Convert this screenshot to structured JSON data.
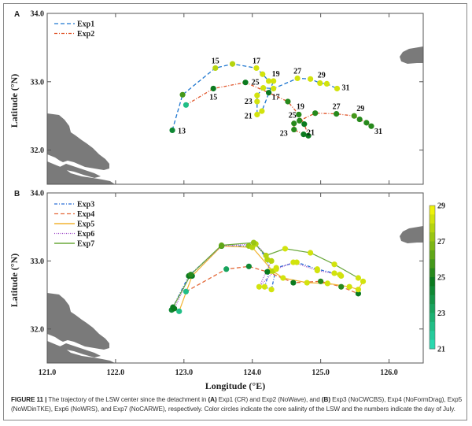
{
  "figure": {
    "caption_label": "FIGURE 11 |",
    "caption_text_1": " The trajectory of the LSW center since the detachment in ",
    "caption_a": "(A)",
    "caption_text_2": " Exp1 (CR) and Exp2 (NoWave), and ",
    "caption_b": "(B)",
    "caption_text_3": " Exp3 (NoCWCBS), Exp4 (NoFormDrag), Exp5 (NoWDinTKE), Exp6 (NoWRS), and Exp7 (NoCARWE), respectively. Color circles indicate the core salinity of the LSW and the numbers indicate the day of July."
  },
  "colors": {
    "Exp1": "#1f77d0",
    "Exp2": "#e0552a",
    "Exp3": "#2a6fd6",
    "Exp4": "#e46a3a",
    "Exp5": "#f2b431",
    "Exp6": "#a04cc8",
    "Exp7": "#6aa83a",
    "land": "#7a7a7a",
    "colorbar_low": "#2de6c4",
    "colorbar_mid": "#0b7a1f",
    "colorbar_high": "#eef20a"
  },
  "chart_data": [
    {
      "panel": "A",
      "type": "line",
      "title": "",
      "xlabel": "Longitude (°E)",
      "ylabel": "Latitude (°N)",
      "xlim": [
        121.0,
        126.5
      ],
      "ylim": [
        31.5,
        34.0
      ],
      "xticks": [
        "121.0",
        "122.0",
        "123.0",
        "124.0",
        "125.0",
        "126.0"
      ],
      "yticks": [
        "32.0",
        "33.0",
        "34.0"
      ],
      "legend_position": "top-left",
      "series": [
        {
          "name": "Exp1",
          "style": "dashed",
          "points": [
            {
              "lon": 122.83,
              "lat": 32.29,
              "salinity": 24.5,
              "day": "13"
            },
            {
              "lon": 122.98,
              "lat": 32.81,
              "salinity": 25.8
            },
            {
              "lon": 123.46,
              "lat": 33.2,
              "salinity": 28.0,
              "day": "15"
            },
            {
              "lon": 123.71,
              "lat": 33.26,
              "salinity": 28.2
            },
            {
              "lon": 124.06,
              "lat": 33.2,
              "salinity": 28.3,
              "day": "17"
            },
            {
              "lon": 124.15,
              "lat": 33.11,
              "salinity": 28.4
            },
            {
              "lon": 124.24,
              "lat": 33.01,
              "salinity": 28.4,
              "day": "19"
            },
            {
              "lon": 124.31,
              "lat": 33.01,
              "salinity": 28.5
            },
            {
              "lon": 124.14,
              "lat": 32.57,
              "salinity": 28.5
            },
            {
              "lon": 124.07,
              "lat": 32.52,
              "salinity": 28.6,
              "day": "21"
            },
            {
              "lon": 124.07,
              "lat": 32.71,
              "salinity": 28.5,
              "day": "23"
            },
            {
              "lon": 124.07,
              "lat": 32.8,
              "salinity": 28.5
            },
            {
              "lon": 124.16,
              "lat": 32.91,
              "salinity": 28.4,
              "day": "25"
            },
            {
              "lon": 124.31,
              "lat": 32.9,
              "salinity": 28.5
            },
            {
              "lon": 124.66,
              "lat": 33.05,
              "salinity": 28.6,
              "day": "27"
            },
            {
              "lon": 124.85,
              "lat": 33.04,
              "salinity": 28.6
            },
            {
              "lon": 124.99,
              "lat": 32.98,
              "salinity": 28.6,
              "day": "29"
            },
            {
              "lon": 125.09,
              "lat": 32.97,
              "salinity": 28.6
            },
            {
              "lon": 125.24,
              "lat": 32.9,
              "salinity": 28.7,
              "day": "31"
            }
          ]
        },
        {
          "name": "Exp2",
          "style": "dash-dot",
          "points": [
            {
              "lon": 123.03,
              "lat": 32.66,
              "salinity": 22.5
            },
            {
              "lon": 123.43,
              "lat": 32.9,
              "salinity": 25.2,
              "day": "15"
            },
            {
              "lon": 123.9,
              "lat": 32.99,
              "salinity": 25.0
            },
            {
              "lon": 124.24,
              "lat": 32.84,
              "salinity": 25.0,
              "day": "17"
            },
            {
              "lon": 124.52,
              "lat": 32.71,
              "salinity": 25.3
            },
            {
              "lon": 124.68,
              "lat": 32.52,
              "salinity": 25.4,
              "day": "19"
            },
            {
              "lon": 124.76,
              "lat": 32.38,
              "salinity": 25.2
            },
            {
              "lon": 124.82,
              "lat": 32.21,
              "salinity": 25.1,
              "day": "21"
            },
            {
              "lon": 124.75,
              "lat": 32.23,
              "salinity": 25.2
            },
            {
              "lon": 124.61,
              "lat": 32.3,
              "salinity": 25.3,
              "day": "23"
            },
            {
              "lon": 124.61,
              "lat": 32.39,
              "salinity": 25.4
            },
            {
              "lon": 124.69,
              "lat": 32.43,
              "salinity": 25.5,
              "day": "25"
            },
            {
              "lon": 124.92,
              "lat": 32.54,
              "salinity": 25.6
            },
            {
              "lon": 125.23,
              "lat": 32.53,
              "salinity": 25.7,
              "day": "27"
            },
            {
              "lon": 125.49,
              "lat": 32.5,
              "salinity": 25.8,
              "day": "29"
            },
            {
              "lon": 125.57,
              "lat": 32.45,
              "salinity": 25.7
            },
            {
              "lon": 125.67,
              "lat": 32.4,
              "salinity": 25.6
            },
            {
              "lon": 125.74,
              "lat": 32.35,
              "salinity": 25.4,
              "day": "31"
            }
          ]
        }
      ]
    },
    {
      "panel": "B",
      "type": "line",
      "title": "",
      "xlabel": "Longitude (°E)",
      "ylabel": "Latitude (°N)",
      "xlim": [
        121.0,
        126.5
      ],
      "ylim": [
        31.5,
        34.0
      ],
      "xticks": [
        "121.0",
        "122.0",
        "123.0",
        "124.0",
        "125.0",
        "126.0"
      ],
      "yticks": [
        "32.0",
        "33.0",
        "34.0"
      ],
      "legend_position": "top-left",
      "colorbar": {
        "label_ticks": [
          "21",
          "23",
          "25",
          "27",
          "29"
        ],
        "range": [
          21,
          29
        ]
      },
      "series": [
        {
          "name": "Exp3",
          "style": "dash-dot",
          "points": [
            {
              "lon": 122.82,
              "lat": 32.28,
              "salinity": 24.5
            },
            {
              "lon": 123.07,
              "lat": 32.78,
              "salinity": 25.0
            },
            {
              "lon": 123.55,
              "lat": 33.22,
              "salinity": 26.0
            },
            {
              "lon": 123.95,
              "lat": 33.22,
              "salinity": 27.5
            },
            {
              "lon": 124.05,
              "lat": 33.25,
              "salinity": 28.0
            },
            {
              "lon": 124.22,
              "lat": 33.02,
              "salinity": 28.2
            },
            {
              "lon": 124.25,
              "lat": 32.85,
              "salinity": 28.3
            },
            {
              "lon": 124.18,
              "lat": 32.62,
              "salinity": 28.5
            },
            {
              "lon": 124.28,
              "lat": 32.58,
              "salinity": 28.6
            },
            {
              "lon": 124.35,
              "lat": 32.9,
              "salinity": 28.4
            },
            {
              "lon": 124.65,
              "lat": 32.98,
              "salinity": 28.5
            },
            {
              "lon": 124.95,
              "lat": 32.88,
              "salinity": 28.6
            },
            {
              "lon": 125.2,
              "lat": 32.82,
              "salinity": 28.6
            },
            {
              "lon": 125.3,
              "lat": 32.78,
              "salinity": 28.7
            }
          ]
        },
        {
          "name": "Exp4",
          "style": "dashed",
          "points": [
            {
              "lon": 123.03,
              "lat": 32.55,
              "salinity": 22.5
            },
            {
              "lon": 123.62,
              "lat": 32.88,
              "salinity": 23.5
            },
            {
              "lon": 123.95,
              "lat": 32.92,
              "salinity": 24.5
            },
            {
              "lon": 124.22,
              "lat": 32.84,
              "salinity": 25.0
            },
            {
              "lon": 124.6,
              "lat": 32.68,
              "salinity": 25.2
            },
            {
              "lon": 125.0,
              "lat": 32.7,
              "salinity": 25.3
            },
            {
              "lon": 125.3,
              "lat": 32.62,
              "salinity": 25.4
            },
            {
              "lon": 125.55,
              "lat": 32.52,
              "salinity": 25.2
            }
          ]
        },
        {
          "name": "Exp5",
          "style": "solid",
          "points": [
            {
              "lon": 122.93,
              "lat": 32.26,
              "salinity": 22.5
            },
            {
              "lon": 123.12,
              "lat": 32.78,
              "salinity": 25.0
            },
            {
              "lon": 123.55,
              "lat": 33.22,
              "salinity": 26.2
            },
            {
              "lon": 124.0,
              "lat": 33.2,
              "salinity": 27.8
            },
            {
              "lon": 124.3,
              "lat": 32.85,
              "salinity": 28.2
            },
            {
              "lon": 124.45,
              "lat": 32.75,
              "salinity": 28.4
            },
            {
              "lon": 124.8,
              "lat": 32.68,
              "salinity": 28.5
            },
            {
              "lon": 125.1,
              "lat": 32.67,
              "salinity": 28.6
            },
            {
              "lon": 125.42,
              "lat": 32.62,
              "salinity": 28.6
            },
            {
              "lon": 125.55,
              "lat": 32.58,
              "salinity": 28.7
            },
            {
              "lon": 125.62,
              "lat": 32.7,
              "salinity": 28.7
            }
          ]
        },
        {
          "name": "Exp6",
          "style": "dotted",
          "points": [
            {
              "lon": 122.86,
              "lat": 32.3,
              "salinity": 24.8
            },
            {
              "lon": 123.08,
              "lat": 32.78,
              "salinity": 25.2
            },
            {
              "lon": 123.55,
              "lat": 33.22,
              "salinity": 26.0
            },
            {
              "lon": 124.05,
              "lat": 33.25,
              "salinity": 27.8
            },
            {
              "lon": 124.28,
              "lat": 33.0,
              "salinity": 28.2
            },
            {
              "lon": 124.1,
              "lat": 32.62,
              "salinity": 28.4
            },
            {
              "lon": 124.35,
              "lat": 32.88,
              "salinity": 28.3
            },
            {
              "lon": 124.6,
              "lat": 32.98,
              "salinity": 28.4
            },
            {
              "lon": 124.95,
              "lat": 32.86,
              "salinity": 28.5
            },
            {
              "lon": 125.28,
              "lat": 32.8,
              "salinity": 28.6
            }
          ]
        },
        {
          "name": "Exp7",
          "style": "solid",
          "points": [
            {
              "lon": 122.84,
              "lat": 32.32,
              "salinity": 25.0
            },
            {
              "lon": 123.1,
              "lat": 32.8,
              "salinity": 25.3
            },
            {
              "lon": 123.55,
              "lat": 33.23,
              "salinity": 26.3
            },
            {
              "lon": 124.02,
              "lat": 33.27,
              "salinity": 27.6
            },
            {
              "lon": 124.2,
              "lat": 33.08,
              "salinity": 28.0
            },
            {
              "lon": 124.48,
              "lat": 33.18,
              "salinity": 28.3
            },
            {
              "lon": 124.85,
              "lat": 33.12,
              "salinity": 28.5
            },
            {
              "lon": 125.2,
              "lat": 32.95,
              "salinity": 28.6
            },
            {
              "lon": 125.55,
              "lat": 32.75,
              "salinity": 28.7
            }
          ]
        }
      ]
    }
  ],
  "legend_a": [
    "Exp1",
    "Exp2"
  ],
  "legend_b": [
    "Exp3",
    "Exp4",
    "Exp5",
    "Exp6",
    "Exp7"
  ],
  "panel_labels": {
    "a": "A",
    "b": "B"
  }
}
